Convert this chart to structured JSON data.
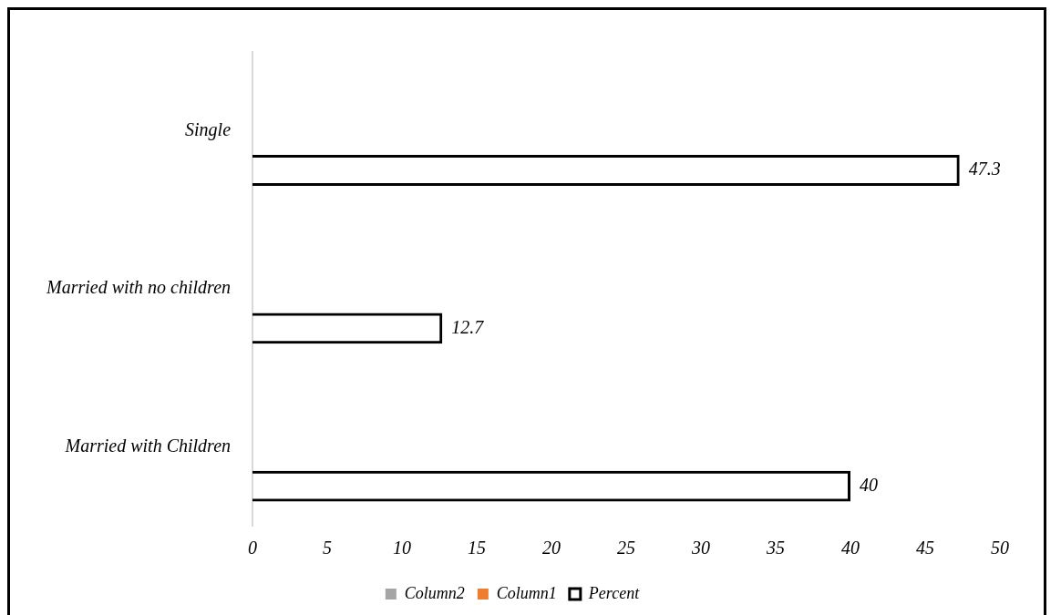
{
  "chart_data": {
    "type": "bar",
    "orientation": "horizontal",
    "categories": [
      "Single",
      "Married with no children",
      "Married with Children"
    ],
    "series": [
      {
        "name": "Column2",
        "color": "#a5a5a5",
        "values": [
          null,
          null,
          null
        ]
      },
      {
        "name": "Column1",
        "color": "#ed7d31",
        "values": [
          null,
          null,
          null
        ]
      },
      {
        "name": "Percent",
        "color": "#000000",
        "values": [
          47.3,
          12.7,
          40
        ]
      }
    ],
    "xlim": [
      0,
      50
    ],
    "xticks": [
      0,
      5,
      10,
      15,
      20,
      25,
      30,
      35,
      40,
      45,
      50
    ],
    "grid": false,
    "legend": "bottom",
    "data_labels": true
  }
}
